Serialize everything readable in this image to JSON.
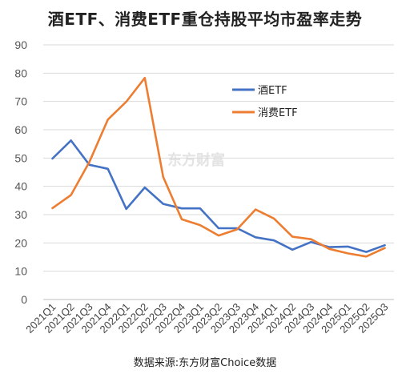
{
  "chart_data": {
    "type": "line",
    "title": "酒ETF、消费ETF重仓持股平均市盈率走势",
    "source_note": "数据来源:东方财富Choice数据",
    "watermark": "东方财富",
    "categories": [
      "2021Q1",
      "2021Q2",
      "2021Q3",
      "2021Q4",
      "2022Q1",
      "2022Q2",
      "2022Q3",
      "2022Q4",
      "2023Q1",
      "2023Q2",
      "2023Q3",
      "2023Q4",
      "2024Q1",
      "2024Q2",
      "2024Q3",
      "2024Q4",
      "2025Q1",
      "2025Q2",
      "2025Q3"
    ],
    "ylim": [
      0,
      90
    ],
    "yticks": [
      0,
      10,
      20,
      30,
      40,
      50,
      60,
      70,
      80,
      90
    ],
    "grid": true,
    "legend_position": "upper-center-right",
    "series": [
      {
        "name": "酒ETF",
        "color": "#4472C4",
        "values": [
          49.8,
          56.2,
          47.6,
          46.2,
          32.0,
          39.6,
          33.8,
          32.2,
          32.2,
          25.2,
          25.2,
          22.0,
          20.9,
          17.6,
          20.3,
          18.5,
          18.7,
          16.8,
          19.2
        ]
      },
      {
        "name": "消费ETF",
        "color": "#ED7D31",
        "values": [
          32.3,
          36.9,
          48.6,
          63.6,
          69.9,
          78.3,
          43.3,
          28.4,
          26.3,
          22.6,
          24.8,
          31.8,
          28.6,
          22.2,
          21.3,
          17.9,
          16.3,
          15.2,
          18.2
        ]
      }
    ]
  }
}
